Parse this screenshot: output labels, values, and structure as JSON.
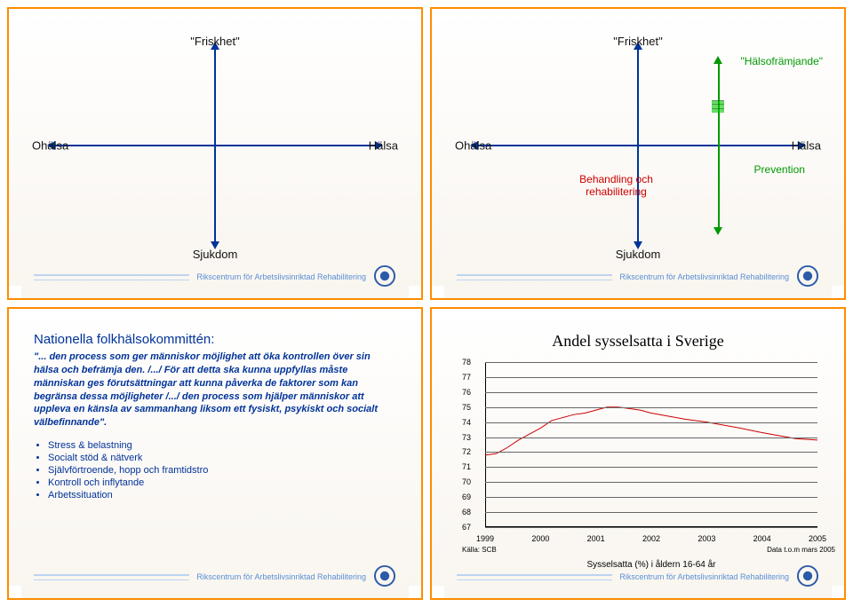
{
  "footer_text": "Rikscentrum för Arbetslivsinriktad Rehabilitering",
  "slide1": {
    "axis": {
      "top": "\"Friskhet\"",
      "bottom": "Sjukdom",
      "left": "Ohälsa",
      "right": "Hälsa"
    }
  },
  "slide2": {
    "axis": {
      "top": "\"Friskhet\"",
      "bottom": "Sjukdom",
      "left": "Ohälsa",
      "right": "Hälsa"
    },
    "promo": "\"Hälsofrämjande\"",
    "treat": "Behandling och\nrehabilitering",
    "prevent": "Prevention"
  },
  "slide3": {
    "title": "Nationella folkhälsokommittén:",
    "quote": "\"... den process som ger människor möjlighet att öka kontrollen över sin hälsa och befrämja den. /.../ För att detta ska kunna uppfyllas måste människan ges förutsättningar att kunna påverka de faktorer som kan begränsa dessa möjligheter /.../ den process som hjälper människor att uppleva en känsla av sammanhang liksom ett fysiskt, psykiskt och socialt välbefinnande\".",
    "bullets": [
      "Stress & belastning",
      "Socialt stöd & nätverk",
      "Självförtroende, hopp och framtidstro",
      "Kontroll och inflytande",
      "Arbetssituation"
    ]
  },
  "slide4": {
    "title": "Andel sysselsatta i Sverige",
    "yticks": [
      67,
      68,
      69,
      70,
      71,
      72,
      73,
      74,
      75,
      76,
      77,
      78
    ],
    "ylim": [
      67,
      78
    ],
    "xlabels": [
      "1999",
      "2000",
      "2001",
      "2002",
      "2003",
      "2004",
      "2005"
    ],
    "xlim": [
      1999,
      2005
    ],
    "src": "Källa: SCB",
    "note": "Data t.o.m mars 2005",
    "caption": "Sysselsatta (%) i åldern 16-64 år",
    "line_color": "#cc0000",
    "series": [
      [
        1999.0,
        71.8
      ],
      [
        1999.2,
        71.9
      ],
      [
        1999.4,
        72.3
      ],
      [
        1999.6,
        72.8
      ],
      [
        1999.8,
        73.2
      ],
      [
        2000.0,
        73.6
      ],
      [
        2000.2,
        74.1
      ],
      [
        2000.4,
        74.3
      ],
      [
        2000.6,
        74.5
      ],
      [
        2000.8,
        74.6
      ],
      [
        2001.0,
        74.8
      ],
      [
        2001.2,
        75.0
      ],
      [
        2001.4,
        75.0
      ],
      [
        2001.6,
        74.9
      ],
      [
        2001.8,
        74.8
      ],
      [
        2002.0,
        74.6
      ],
      [
        2002.3,
        74.4
      ],
      [
        2002.6,
        74.2
      ],
      [
        2003.0,
        74.0
      ],
      [
        2003.3,
        73.8
      ],
      [
        2003.6,
        73.6
      ],
      [
        2004.0,
        73.3
      ],
      [
        2004.3,
        73.1
      ],
      [
        2004.6,
        72.9
      ],
      [
        2005.0,
        72.8
      ]
    ]
  }
}
